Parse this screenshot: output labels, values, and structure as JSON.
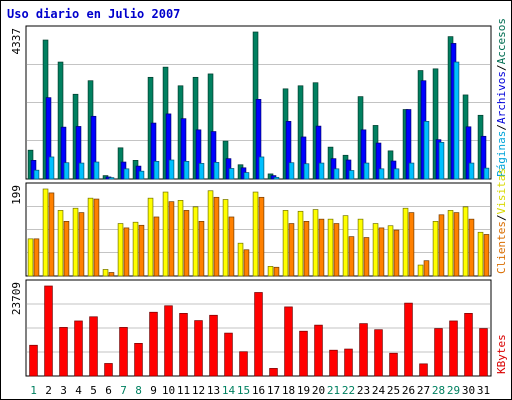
{
  "chart_data": {
    "type": "bar",
    "title": "Uso diario en Julio 2007",
    "categories": [
      "1",
      "2",
      "3",
      "4",
      "5",
      "6",
      "7",
      "8",
      "9",
      "10",
      "11",
      "12",
      "13",
      "14",
      "15",
      "16",
      "17",
      "18",
      "19",
      "20",
      "21",
      "22",
      "23",
      "24",
      "25",
      "26",
      "27",
      "28",
      "29",
      "30",
      "31"
    ],
    "weekend_days": [
      "1",
      "7",
      "8",
      "14",
      "15",
      "21",
      "22",
      "28",
      "29"
    ],
    "panels": [
      {
        "id": "visits",
        "ymax_label": "4337",
        "ymax": 4337,
        "series": [
          {
            "name": "Accesos",
            "color": "#008060",
            "values": [
              850,
              4100,
              3450,
              2500,
              2900,
              100,
              920,
              550,
              3000,
              3300,
              2750,
              3000,
              3100,
              1120,
              420,
              4337,
              150,
              2660,
              2750,
              2840,
              940,
              700,
              2430,
              1580,
              830,
              2050,
              3200,
              3250,
              4200,
              2480,
              1880
            ]
          },
          {
            "name": "Archivos",
            "color": "#0000ff",
            "values": [
              550,
              2400,
              1530,
              1550,
              1850,
              60,
              500,
              380,
              1650,
              1920,
              1780,
              1450,
              1400,
              600,
              330,
              2350,
              100,
              1700,
              1240,
              1560,
              600,
              560,
              1450,
              1060,
              530,
              2050,
              2900,
              1160,
              4000,
              1540,
              1260
            ]
          },
          {
            "name": "Páginas",
            "color": "#00c0ff",
            "values": [
              260,
              650,
              480,
              470,
              500,
              40,
              300,
              230,
              520,
              560,
              520,
              460,
              490,
              310,
              190,
              650,
              50,
              480,
              450,
              470,
              300,
              250,
              470,
              300,
              300,
              470,
              1700,
              1080,
              3450,
              470,
              320
            ]
          }
        ],
        "labels": [
          "Páginas",
          "/",
          "Archivos",
          "/",
          "Accesos"
        ]
      },
      {
        "id": "sites",
        "ymax_label": "199",
        "ymax": 199,
        "series": [
          {
            "name": "Visitas",
            "color": "#ffff00",
            "values": [
              85,
              199,
              150,
              155,
              178,
              15,
              120,
              123,
              178,
              192,
              173,
              158,
              195,
              175,
              75,
              192,
              22,
              150,
              148,
              152,
              130,
              138,
              130,
              120,
              115,
              155,
              25,
              125,
              150,
              158,
              100
            ]
          },
          {
            "name": "Clientes",
            "color": "#ff8000",
            "values": [
              85,
              190,
              125,
              145,
              176,
              8,
              110,
              116,
              135,
              170,
              150,
              125,
              180,
              135,
              60,
              180,
              20,
              120,
              125,
              130,
              120,
              90,
              88,
              110,
              105,
              145,
              35,
              140,
              145,
              130,
              95
            ]
          }
        ],
        "labels": [
          "Clientes",
          "/",
          "Visitas"
        ]
      },
      {
        "id": "kbytes",
        "ymax_label": "23709",
        "ymax": 23709,
        "series": [
          {
            "name": "KBytes",
            "color": "#ff0000",
            "values": [
              8100,
              23709,
              12800,
              14500,
              15600,
              3300,
              12800,
              8600,
              16800,
              18500,
              16500,
              14600,
              16000,
              11300,
              6400,
              22000,
              2000,
              18200,
              11800,
              13400,
              6800,
              7100,
              13800,
              12200,
              6000,
              19200,
              3200,
              12500,
              14500,
              16500,
              12500
            ]
          }
        ],
        "labels": [
          "KBytes"
        ]
      }
    ]
  }
}
